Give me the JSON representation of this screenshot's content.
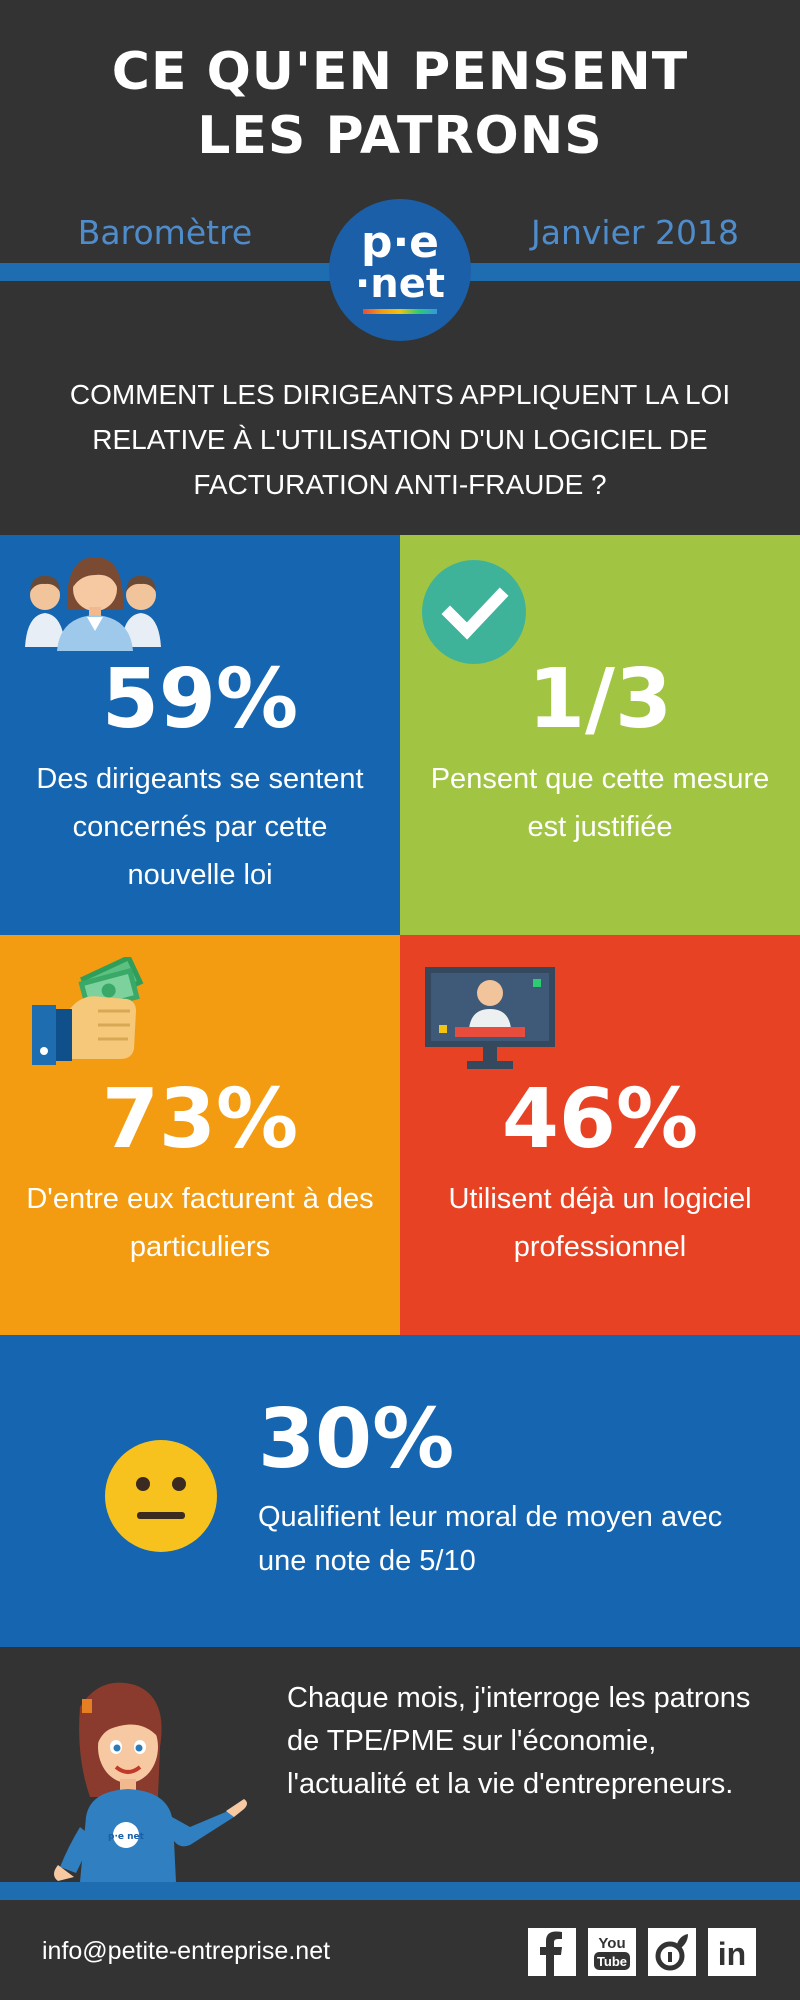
{
  "header": {
    "title": "CE QU'EN PENSENT\nLES PATRONS",
    "barometre": "Baromètre",
    "date": "Janvier 2018",
    "logo_top": "p·e",
    "logo_bottom": "·net",
    "question": "COMMENT LES DIRIGEANTS APPLIQUENT LA LOI RELATIVE À L'UTILISATION D'UN LOGICIEL DE FACTURATION ANTI-FRAUDE ?"
  },
  "stats": [
    {
      "value": "59%",
      "text": "Des dirigeants se sentent concernés par cette nouvelle loi",
      "icon": "people-icon",
      "color": "#1565b0"
    },
    {
      "value": "1/3",
      "text": "Pensent que cette mesure est justifiée",
      "icon": "checkmark-icon",
      "color": "#a1c543"
    },
    {
      "value": "73%",
      "text": "D'entre eux facturent à des particuliers",
      "icon": "money-hand-icon",
      "color": "#f39c12"
    },
    {
      "value": "46%",
      "text": "Utilisent déjà un logiciel professionnel",
      "icon": "monitor-icon",
      "color": "#e74224"
    }
  ],
  "moral": {
    "value": "30%",
    "text": "Qualifient leur moral de moyen avec une note de 5/10",
    "icon": "neutral-face-icon"
  },
  "intro": {
    "text": "Chaque mois, j'interroge les patrons de TPE/PME sur l'économie, l'actualité et la vie d'entrepreneurs.",
    "mascot_logo": "p·e net"
  },
  "footer": {
    "email": "info@petite-entreprise.net",
    "social": [
      "facebook-icon",
      "youtube-icon",
      "viadeo-icon",
      "linkedin-icon"
    ],
    "youtube_top": "You",
    "youtube_bottom": "Tube",
    "linkedin": "in"
  }
}
